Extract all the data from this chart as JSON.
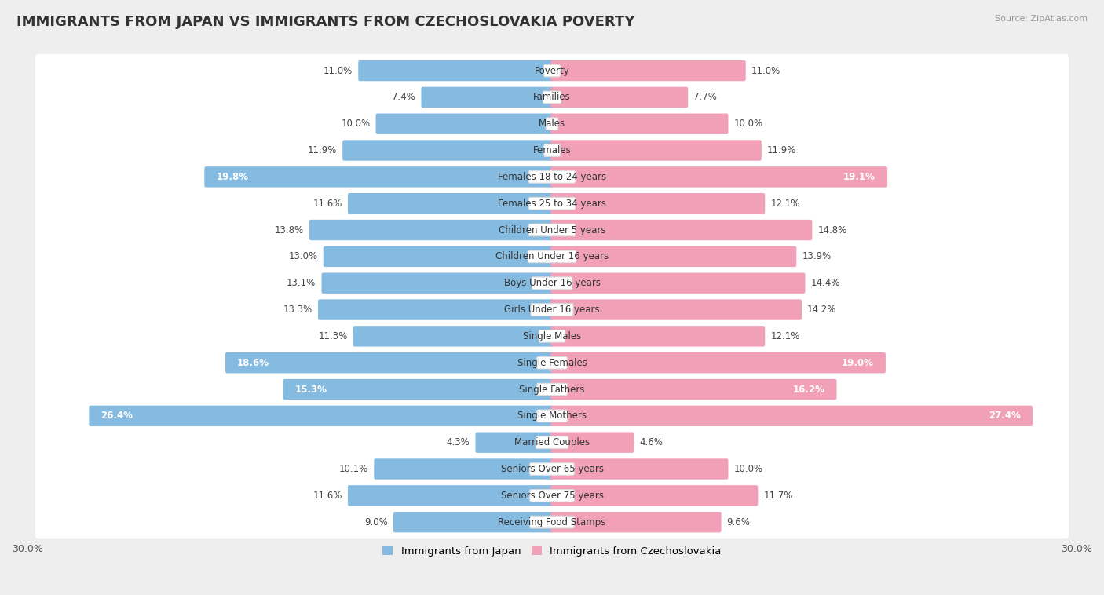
{
  "title": "IMMIGRANTS FROM JAPAN VS IMMIGRANTS FROM CZECHOSLOVAKIA POVERTY",
  "source": "Source: ZipAtlas.com",
  "categories": [
    "Poverty",
    "Families",
    "Males",
    "Females",
    "Females 18 to 24 years",
    "Females 25 to 34 years",
    "Children Under 5 years",
    "Children Under 16 years",
    "Boys Under 16 years",
    "Girls Under 16 years",
    "Single Males",
    "Single Females",
    "Single Fathers",
    "Single Mothers",
    "Married Couples",
    "Seniors Over 65 years",
    "Seniors Over 75 years",
    "Receiving Food Stamps"
  ],
  "japan_values": [
    11.0,
    7.4,
    10.0,
    11.9,
    19.8,
    11.6,
    13.8,
    13.0,
    13.1,
    13.3,
    11.3,
    18.6,
    15.3,
    26.4,
    4.3,
    10.1,
    11.6,
    9.0
  ],
  "czech_values": [
    11.0,
    7.7,
    10.0,
    11.9,
    19.1,
    12.1,
    14.8,
    13.9,
    14.4,
    14.2,
    12.1,
    19.0,
    16.2,
    27.4,
    4.6,
    10.0,
    11.7,
    9.6
  ],
  "japan_color": "#85BBE0",
  "czech_color": "#F2A0B8",
  "japan_label": "Immigrants from Japan",
  "czech_label": "Immigrants from Czechoslovakia",
  "xlim": 30.0,
  "bar_height": 0.62,
  "bg_color": "#eeeeee",
  "row_bg": "#ffffff",
  "title_fontsize": 13,
  "label_fontsize": 8.5,
  "value_fontsize": 8.5,
  "axis_label_fontsize": 9
}
